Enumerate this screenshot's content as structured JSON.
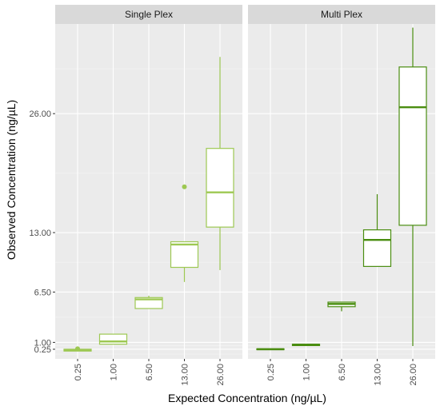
{
  "chart_data": {
    "type": "boxplot",
    "xlabel": "Expected Concentration (ng/µL)",
    "ylabel": "Observed Concentration (ng/µL)",
    "categories": [
      "0.25",
      "1.00",
      "6.50",
      "13.00",
      "26.00"
    ],
    "y_ticks": [
      0.25,
      1.0,
      6.5,
      13.0,
      26.0
    ],
    "y_tick_labels": [
      "0.25",
      "1.00",
      "6.50",
      "13.00",
      "26.00"
    ],
    "ylim": [
      -0.8,
      35.8
    ],
    "grid": true,
    "panels": [
      {
        "name": "Single Plex",
        "color": "#9dc852",
        "boxes": [
          {
            "category": "0.25",
            "min": 0.05,
            "q1": 0.05,
            "median": 0.15,
            "q3": 0.25,
            "max": 0.25,
            "outliers": [
              0.3
            ]
          },
          {
            "category": "1.00",
            "min": 0.8,
            "q1": 0.8,
            "median": 1.1,
            "q3": 1.9,
            "max": 1.9,
            "outliers": []
          },
          {
            "category": "6.50",
            "min": 4.7,
            "q1": 4.7,
            "median": 5.7,
            "q3": 5.9,
            "max": 6.1,
            "outliers": []
          },
          {
            "category": "13.00",
            "min": 7.6,
            "q1": 9.2,
            "median": 11.7,
            "q3": 12.0,
            "max": 12.0,
            "outliers": [
              18.0
            ]
          },
          {
            "category": "26.00",
            "min": 8.9,
            "q1": 13.6,
            "median": 17.4,
            "q3": 22.2,
            "max": 32.2,
            "outliers": []
          }
        ]
      },
      {
        "name": "Multi Plex",
        "color": "#4a8d10",
        "boxes": [
          {
            "category": "0.25",
            "min": 0.2,
            "q1": 0.2,
            "median": 0.25,
            "q3": 0.3,
            "max": 0.3,
            "outliers": []
          },
          {
            "category": "1.00",
            "min": 0.65,
            "q1": 0.65,
            "median": 0.75,
            "q3": 0.8,
            "max": 0.8,
            "outliers": []
          },
          {
            "category": "6.50",
            "min": 4.4,
            "q1": 4.9,
            "median": 5.2,
            "q3": 5.4,
            "max": 5.4,
            "outliers": []
          },
          {
            "category": "13.00",
            "min": 9.3,
            "q1": 9.3,
            "median": 12.2,
            "q3": 13.3,
            "max": 17.2,
            "outliers": []
          },
          {
            "category": "26.00",
            "min": 0.6,
            "q1": 13.8,
            "median": 26.7,
            "q3": 31.1,
            "max": 35.4,
            "outliers": []
          }
        ]
      }
    ]
  }
}
